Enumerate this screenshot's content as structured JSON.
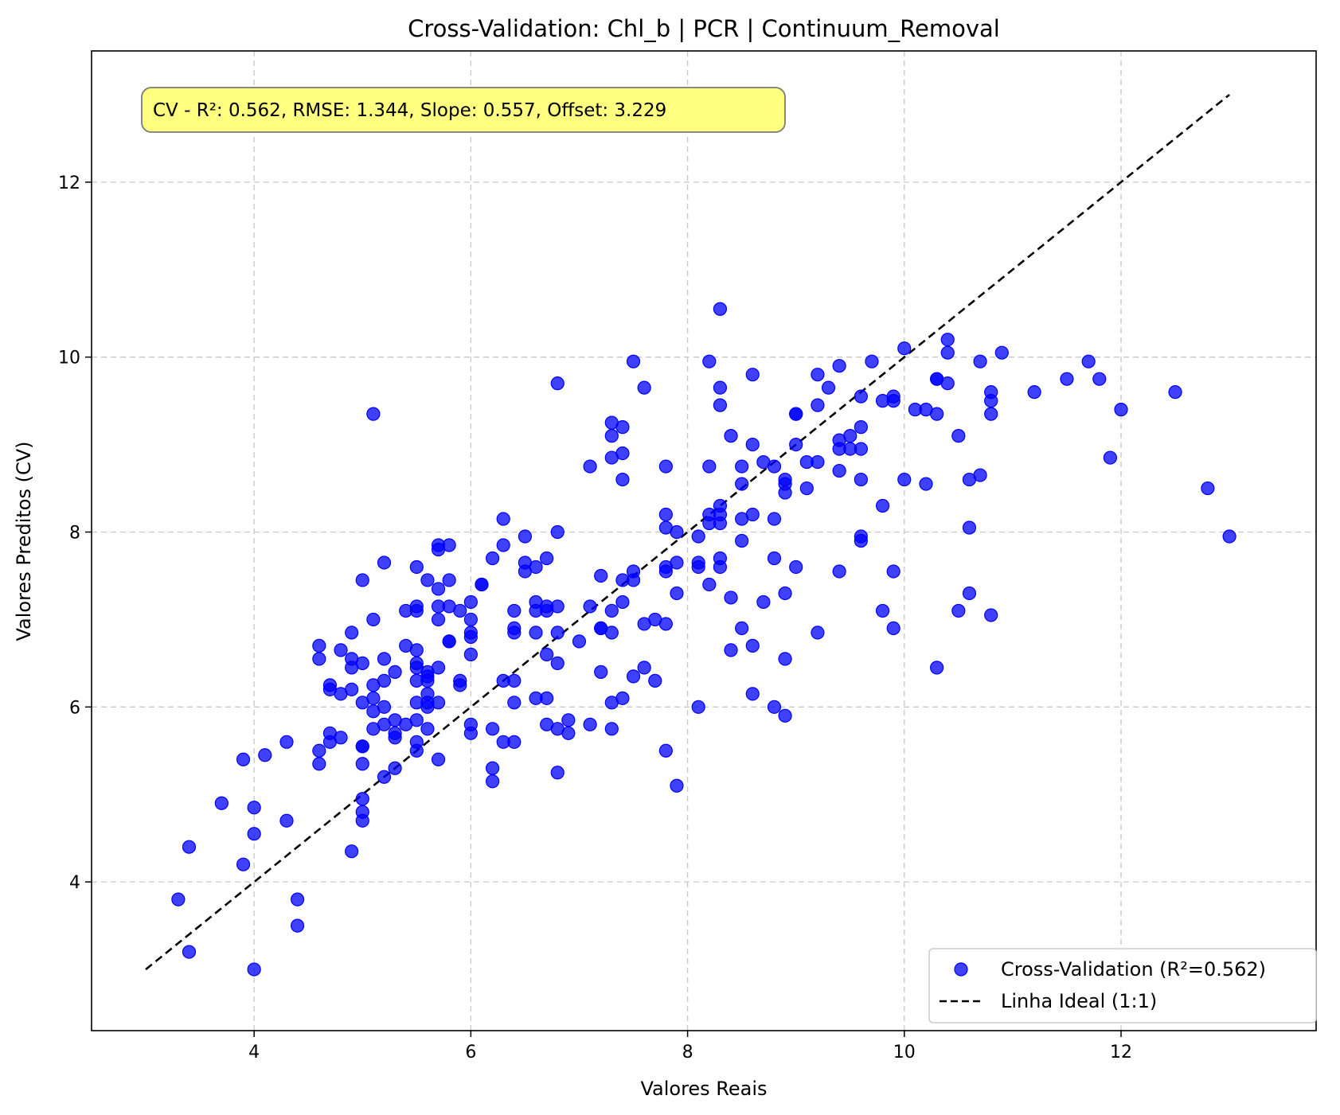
{
  "chart_data": {
    "type": "scatter",
    "title": "Cross-Validation: Chl_b | PCR | Continuum_Removal",
    "xlabel": "Valores Reais",
    "ylabel": "Valores Preditos (CV)",
    "xlim": [
      2.5,
      13.8
    ],
    "ylim": [
      2.3,
      13.5
    ],
    "xticks": [
      4,
      6,
      8,
      10,
      12
    ],
    "yticks": [
      4,
      6,
      8,
      10,
      12
    ],
    "grid": true,
    "legend_position": "lower right",
    "stats_text": "CV - R²: 0.562, RMSE: 1.344, Slope: 0.557, Offset: 3.229",
    "colors": {
      "points": "#0000ff",
      "ideal_line": "#000000",
      "stats_box_fill": "#ffff80",
      "grid": "#c8c8c8"
    },
    "series": [
      {
        "name": "Cross-Validation (R²=0.562)",
        "type": "scatter",
        "points": [
          [
            3.3,
            3.8
          ],
          [
            3.4,
            3.2
          ],
          [
            3.4,
            4.4
          ],
          [
            3.7,
            4.9
          ],
          [
            3.9,
            5.4
          ],
          [
            3.9,
            4.2
          ],
          [
            4.0,
            3.0
          ],
          [
            4.0,
            4.55
          ],
          [
            4.0,
            4.85
          ],
          [
            4.1,
            5.45
          ],
          [
            4.3,
            5.6
          ],
          [
            4.3,
            4.7
          ],
          [
            4.4,
            3.8
          ],
          [
            4.4,
            3.5
          ],
          [
            4.6,
            6.7
          ],
          [
            4.6,
            6.55
          ],
          [
            4.6,
            5.35
          ],
          [
            4.6,
            5.5
          ],
          [
            4.7,
            6.25
          ],
          [
            4.7,
            6.2
          ],
          [
            4.7,
            5.7
          ],
          [
            4.7,
            5.6
          ],
          [
            4.8,
            6.65
          ],
          [
            4.8,
            6.15
          ],
          [
            4.8,
            5.65
          ],
          [
            4.9,
            6.85
          ],
          [
            4.9,
            6.55
          ],
          [
            4.9,
            6.45
          ],
          [
            4.9,
            6.2
          ],
          [
            4.9,
            4.35
          ],
          [
            5.0,
            7.45
          ],
          [
            5.0,
            6.5
          ],
          [
            5.0,
            6.05
          ],
          [
            5.0,
            5.55
          ],
          [
            5.0,
            5.55
          ],
          [
            5.0,
            5.35
          ],
          [
            5.0,
            4.95
          ],
          [
            5.0,
            4.8
          ],
          [
            5.0,
            4.7
          ],
          [
            5.1,
            9.35
          ],
          [
            5.1,
            7.0
          ],
          [
            5.1,
            6.25
          ],
          [
            5.1,
            6.1
          ],
          [
            5.1,
            5.95
          ],
          [
            5.1,
            5.75
          ],
          [
            5.2,
            7.65
          ],
          [
            5.2,
            6.55
          ],
          [
            5.2,
            6.3
          ],
          [
            5.2,
            6.0
          ],
          [
            5.2,
            5.8
          ],
          [
            5.2,
            5.2
          ],
          [
            5.3,
            6.4
          ],
          [
            5.3,
            5.85
          ],
          [
            5.3,
            5.7
          ],
          [
            5.3,
            5.65
          ],
          [
            5.3,
            5.3
          ],
          [
            5.4,
            7.1
          ],
          [
            5.4,
            6.7
          ],
          [
            5.4,
            5.8
          ],
          [
            5.5,
            7.6
          ],
          [
            5.5,
            7.15
          ],
          [
            5.5,
            7.1
          ],
          [
            5.5,
            6.65
          ],
          [
            5.5,
            6.5
          ],
          [
            5.5,
            6.45
          ],
          [
            5.5,
            6.3
          ],
          [
            5.5,
            6.05
          ],
          [
            5.5,
            5.85
          ],
          [
            5.5,
            5.6
          ],
          [
            5.5,
            5.5
          ],
          [
            5.6,
            7.45
          ],
          [
            5.6,
            6.4
          ],
          [
            5.6,
            6.35
          ],
          [
            5.6,
            6.3
          ],
          [
            5.6,
            6.15
          ],
          [
            5.6,
            6.05
          ],
          [
            5.6,
            6.0
          ],
          [
            5.6,
            5.75
          ],
          [
            5.7,
            7.85
          ],
          [
            5.7,
            7.8
          ],
          [
            5.7,
            7.35
          ],
          [
            5.7,
            7.15
          ],
          [
            5.7,
            7.0
          ],
          [
            5.7,
            6.45
          ],
          [
            5.7,
            6.05
          ],
          [
            5.7,
            5.4
          ],
          [
            5.8,
            7.85
          ],
          [
            5.8,
            7.45
          ],
          [
            5.8,
            7.15
          ],
          [
            5.8,
            6.75
          ],
          [
            5.8,
            6.75
          ],
          [
            5.9,
            7.1
          ],
          [
            5.9,
            6.3
          ],
          [
            5.9,
            6.25
          ],
          [
            6.0,
            7.2
          ],
          [
            6.0,
            7.0
          ],
          [
            6.0,
            6.85
          ],
          [
            6.0,
            6.8
          ],
          [
            6.0,
            6.6
          ],
          [
            6.0,
            5.8
          ],
          [
            6.0,
            5.7
          ],
          [
            6.1,
            7.4
          ],
          [
            6.1,
            7.4
          ],
          [
            6.2,
            7.7
          ],
          [
            6.2,
            5.75
          ],
          [
            6.2,
            5.3
          ],
          [
            6.2,
            5.15
          ],
          [
            6.3,
            8.15
          ],
          [
            6.3,
            7.85
          ],
          [
            6.3,
            6.3
          ],
          [
            6.3,
            5.6
          ],
          [
            6.4,
            7.1
          ],
          [
            6.4,
            6.9
          ],
          [
            6.4,
            6.85
          ],
          [
            6.4,
            6.3
          ],
          [
            6.4,
            6.05
          ],
          [
            6.4,
            5.6
          ],
          [
            6.5,
            7.95
          ],
          [
            6.5,
            7.65
          ],
          [
            6.5,
            7.55
          ],
          [
            6.6,
            7.6
          ],
          [
            6.6,
            7.2
          ],
          [
            6.6,
            7.1
          ],
          [
            6.6,
            6.85
          ],
          [
            6.6,
            6.1
          ],
          [
            6.7,
            7.7
          ],
          [
            6.7,
            7.15
          ],
          [
            6.7,
            7.1
          ],
          [
            6.7,
            6.6
          ],
          [
            6.7,
            6.1
          ],
          [
            6.7,
            5.8
          ],
          [
            6.8,
            9.7
          ],
          [
            6.8,
            8.0
          ],
          [
            6.8,
            7.15
          ],
          [
            6.8,
            6.85
          ],
          [
            6.8,
            6.5
          ],
          [
            6.8,
            5.75
          ],
          [
            6.8,
            5.25
          ],
          [
            6.9,
            5.85
          ],
          [
            6.9,
            5.7
          ],
          [
            7.0,
            6.75
          ],
          [
            7.1,
            8.75
          ],
          [
            7.1,
            7.15
          ],
          [
            7.1,
            5.8
          ],
          [
            7.2,
            7.5
          ],
          [
            7.2,
            6.9
          ],
          [
            7.2,
            6.9
          ],
          [
            7.2,
            6.4
          ],
          [
            7.3,
            9.25
          ],
          [
            7.3,
            9.1
          ],
          [
            7.3,
            8.85
          ],
          [
            7.3,
            7.1
          ],
          [
            7.3,
            6.85
          ],
          [
            7.3,
            6.05
          ],
          [
            7.3,
            5.75
          ],
          [
            7.4,
            9.2
          ],
          [
            7.4,
            8.9
          ],
          [
            7.4,
            8.6
          ],
          [
            7.4,
            7.45
          ],
          [
            7.4,
            7.2
          ],
          [
            7.4,
            6.1
          ],
          [
            7.5,
            9.95
          ],
          [
            7.5,
            7.55
          ],
          [
            7.5,
            7.45
          ],
          [
            7.5,
            6.35
          ],
          [
            7.6,
            9.65
          ],
          [
            7.6,
            6.95
          ],
          [
            7.6,
            6.45
          ],
          [
            7.7,
            7.0
          ],
          [
            7.7,
            6.3
          ],
          [
            7.8,
            8.75
          ],
          [
            7.8,
            8.2
          ],
          [
            7.8,
            8.05
          ],
          [
            7.8,
            7.6
          ],
          [
            7.8,
            7.55
          ],
          [
            7.8,
            6.95
          ],
          [
            7.8,
            5.5
          ],
          [
            7.9,
            8.0
          ],
          [
            7.9,
            7.65
          ],
          [
            7.9,
            7.3
          ],
          [
            7.9,
            5.1
          ],
          [
            8.1,
            7.95
          ],
          [
            8.1,
            7.65
          ],
          [
            8.1,
            7.6
          ],
          [
            8.1,
            6.0
          ],
          [
            8.2,
            9.95
          ],
          [
            8.2,
            8.75
          ],
          [
            8.2,
            8.2
          ],
          [
            8.2,
            8.1
          ],
          [
            8.2,
            7.4
          ],
          [
            8.3,
            10.55
          ],
          [
            8.3,
            9.65
          ],
          [
            8.3,
            9.45
          ],
          [
            8.3,
            8.3
          ],
          [
            8.3,
            8.2
          ],
          [
            8.3,
            8.1
          ],
          [
            8.3,
            7.7
          ],
          [
            8.3,
            7.6
          ],
          [
            8.4,
            9.1
          ],
          [
            8.4,
            7.25
          ],
          [
            8.4,
            6.65
          ],
          [
            8.5,
            8.75
          ],
          [
            8.5,
            8.55
          ],
          [
            8.5,
            8.15
          ],
          [
            8.5,
            7.9
          ],
          [
            8.5,
            6.9
          ],
          [
            8.6,
            9.8
          ],
          [
            8.6,
            9.0
          ],
          [
            8.6,
            8.2
          ],
          [
            8.6,
            6.7
          ],
          [
            8.6,
            6.15
          ],
          [
            8.7,
            8.8
          ],
          [
            8.7,
            7.2
          ],
          [
            8.8,
            8.75
          ],
          [
            8.8,
            8.15
          ],
          [
            8.8,
            7.7
          ],
          [
            8.8,
            6.0
          ],
          [
            8.9,
            8.6
          ],
          [
            8.9,
            8.55
          ],
          [
            8.9,
            8.45
          ],
          [
            8.9,
            7.3
          ],
          [
            8.9,
            6.55
          ],
          [
            8.9,
            5.9
          ],
          [
            9.0,
            9.35
          ],
          [
            9.0,
            9.35
          ],
          [
            9.0,
            9.0
          ],
          [
            9.0,
            7.6
          ],
          [
            9.1,
            8.8
          ],
          [
            9.1,
            8.5
          ],
          [
            9.2,
            9.8
          ],
          [
            9.2,
            9.45
          ],
          [
            9.2,
            8.8
          ],
          [
            9.2,
            6.85
          ],
          [
            9.3,
            9.65
          ],
          [
            9.4,
            9.9
          ],
          [
            9.4,
            9.05
          ],
          [
            9.4,
            8.95
          ],
          [
            9.4,
            8.7
          ],
          [
            9.4,
            7.55
          ],
          [
            9.5,
            9.1
          ],
          [
            9.5,
            8.95
          ],
          [
            9.6,
            9.55
          ],
          [
            9.6,
            9.2
          ],
          [
            9.6,
            8.95
          ],
          [
            9.6,
            8.6
          ],
          [
            9.6,
            7.95
          ],
          [
            9.6,
            7.9
          ],
          [
            9.7,
            9.95
          ],
          [
            9.8,
            9.5
          ],
          [
            9.8,
            8.3
          ],
          [
            9.8,
            7.1
          ],
          [
            9.9,
            9.55
          ],
          [
            9.9,
            9.5
          ],
          [
            9.9,
            7.55
          ],
          [
            9.9,
            6.9
          ],
          [
            10.0,
            10.1
          ],
          [
            10.0,
            8.6
          ],
          [
            10.1,
            9.4
          ],
          [
            10.2,
            9.4
          ],
          [
            10.2,
            8.55
          ],
          [
            10.3,
            9.75
          ],
          [
            10.3,
            9.75
          ],
          [
            10.3,
            9.35
          ],
          [
            10.3,
            6.45
          ],
          [
            10.4,
            10.2
          ],
          [
            10.4,
            10.05
          ],
          [
            10.4,
            9.7
          ],
          [
            10.5,
            9.1
          ],
          [
            10.5,
            7.1
          ],
          [
            10.6,
            8.6
          ],
          [
            10.6,
            8.05
          ],
          [
            10.6,
            7.3
          ],
          [
            10.7,
            9.95
          ],
          [
            10.7,
            8.65
          ],
          [
            10.8,
            9.6
          ],
          [
            10.8,
            9.5
          ],
          [
            10.8,
            9.35
          ],
          [
            10.8,
            7.05
          ],
          [
            10.9,
            10.05
          ],
          [
            11.2,
            9.6
          ],
          [
            11.5,
            9.75
          ],
          [
            11.7,
            9.95
          ],
          [
            11.8,
            9.75
          ],
          [
            11.9,
            8.85
          ],
          [
            12.0,
            9.4
          ],
          [
            12.5,
            9.6
          ],
          [
            12.8,
            8.5
          ],
          [
            13.0,
            7.95
          ]
        ]
      },
      {
        "name": "Linha Ideal (1:1)",
        "type": "line",
        "style": "dashed",
        "points": [
          [
            3.0,
            3.0
          ],
          [
            13.0,
            13.0
          ]
        ]
      }
    ]
  }
}
